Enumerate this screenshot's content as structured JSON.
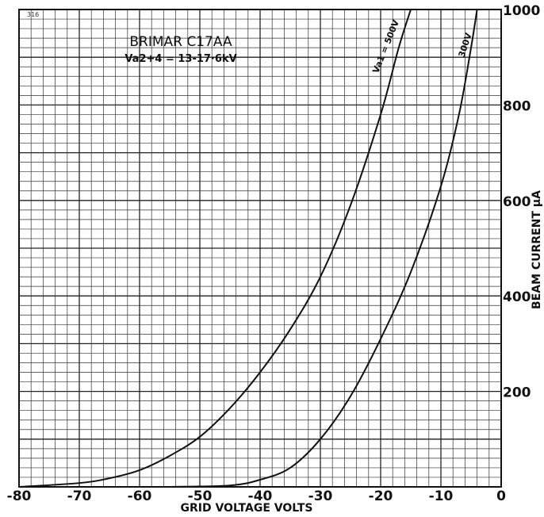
{
  "chart_data": {
    "type": "line",
    "title": "BRIMAR C17AA",
    "subtitle": "Va2+4 = 13-17·6kV",
    "corner_label": "316",
    "xlabel": "GRID VOLTAGE VOLTS",
    "ylabel": "BEAM CURRENT μA",
    "xlim": [
      -80,
      0
    ],
    "ylim": [
      0,
      1000
    ],
    "x_ticks": [
      -80,
      -70,
      -60,
      -50,
      -40,
      -30,
      -20,
      -10,
      0
    ],
    "x_tick_labels": [
      "-80",
      "-70",
      "-60",
      "-50",
      "-40",
      "-30",
      "-20",
      "-10",
      "0"
    ],
    "y_ticks": [
      200,
      400,
      600,
      800,
      1000
    ],
    "y_tick_labels": [
      "200",
      "400",
      "600",
      "800",
      "1000"
    ],
    "grid": true,
    "series": [
      {
        "name": "Va1 = 500V",
        "x": [
          -80,
          -70,
          -65,
          -60,
          -55,
          -50,
          -45,
          -40,
          -35,
          -30,
          -25,
          -20,
          -17,
          -15
        ],
        "y": [
          0,
          8,
          18,
          35,
          65,
          105,
          165,
          240,
          330,
          440,
          590,
          780,
          920,
          1000
        ]
      },
      {
        "name": "300V",
        "x": [
          -55,
          -45,
          -40,
          -35,
          -30,
          -25,
          -20,
          -15,
          -10,
          -7,
          -5,
          -4
        ],
        "y": [
          0,
          3,
          15,
          40,
          100,
          190,
          310,
          450,
          630,
          780,
          920,
          1000
        ]
      }
    ]
  }
}
